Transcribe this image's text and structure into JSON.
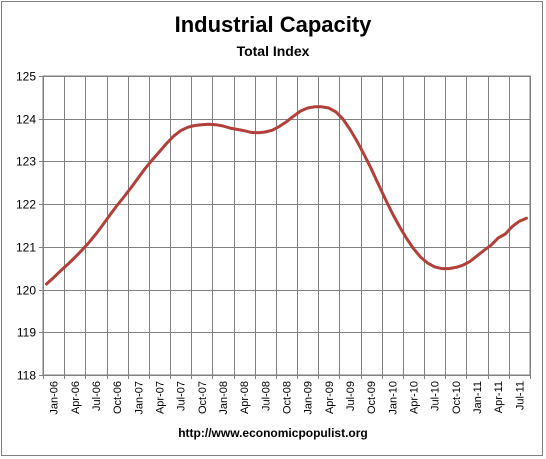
{
  "chart_data": {
    "type": "line",
    "title": "Industrial Capacity",
    "subtitle": "Total Index",
    "source": "http://www.economicpopulist.org",
    "xlabel": "",
    "ylabel": "",
    "ylim": [
      118,
      125
    ],
    "yticks": [
      118,
      119,
      120,
      121,
      122,
      123,
      124,
      125
    ],
    "grid": true,
    "x_tick_labels": [
      "Jan-06",
      "Apr-06",
      "Jul-06",
      "Oct-06",
      "Jan-07",
      "Apr-07",
      "Jul-07",
      "Oct-07",
      "Jan-08",
      "Apr-08",
      "Jul-08",
      "Oct-08",
      "Jan-09",
      "Apr-09",
      "Jul-09",
      "Oct-09",
      "Jan-10",
      "Apr-10",
      "Jul-10",
      "Oct-10",
      "Jan-11",
      "Apr-11",
      "Jul-11"
    ],
    "series": [
      {
        "color": "#b2403a",
        "x": [
          "Jan-06",
          "Feb-06",
          "Mar-06",
          "Apr-06",
          "May-06",
          "Jun-06",
          "Jul-06",
          "Aug-06",
          "Sep-06",
          "Oct-06",
          "Nov-06",
          "Dec-06",
          "Jan-07",
          "Feb-07",
          "Mar-07",
          "Apr-07",
          "May-07",
          "Jun-07",
          "Jul-07",
          "Aug-07",
          "Sep-07",
          "Oct-07",
          "Nov-07",
          "Dec-07",
          "Jan-08",
          "Feb-08",
          "Mar-08",
          "Apr-08",
          "May-08",
          "Jun-08",
          "Jul-08",
          "Aug-08",
          "Sep-08",
          "Oct-08",
          "Nov-08",
          "Dec-08",
          "Jan-09",
          "Feb-09",
          "Mar-09",
          "Apr-09",
          "May-09",
          "Jun-09",
          "Jul-09",
          "Aug-09",
          "Sep-09",
          "Oct-09",
          "Nov-09",
          "Dec-09",
          "Jan-10",
          "Feb-10",
          "Mar-10",
          "Apr-10",
          "May-10",
          "Jun-10",
          "Jul-10",
          "Aug-10",
          "Sep-10",
          "Oct-10",
          "Nov-10",
          "Dec-10",
          "Jan-11",
          "Feb-11",
          "Mar-11",
          "Apr-11",
          "May-11",
          "Jun-11",
          "Jul-11",
          "Aug-11",
          "Sep-11"
        ],
        "values": [
          120.13,
          120.28,
          120.44,
          120.59,
          120.75,
          120.92,
          121.1,
          121.3,
          121.52,
          121.75,
          121.97,
          122.18,
          122.39,
          122.62,
          122.84,
          123.04,
          123.23,
          123.42,
          123.59,
          123.72,
          123.8,
          123.84,
          123.86,
          123.87,
          123.86,
          123.83,
          123.78,
          123.75,
          123.72,
          123.68,
          123.67,
          123.69,
          123.73,
          123.82,
          123.93,
          124.06,
          124.18,
          124.25,
          124.28,
          124.28,
          124.25,
          124.16,
          123.99,
          123.75,
          123.47,
          123.16,
          122.83,
          122.47,
          122.12,
          121.78,
          121.48,
          121.2,
          120.96,
          120.76,
          120.62,
          120.53,
          120.49,
          120.49,
          120.52,
          120.57,
          120.66,
          120.79,
          120.92,
          121.04,
          121.21,
          121.3,
          121.48,
          121.6,
          121.67
        ]
      }
    ]
  }
}
